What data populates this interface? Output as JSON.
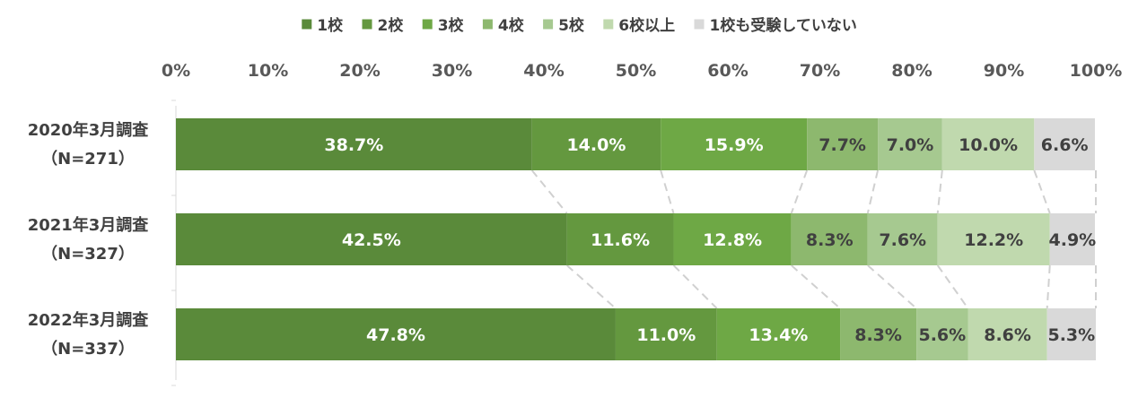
{
  "chart_data": {
    "type": "bar",
    "orientation": "horizontal",
    "stacked": "percent",
    "categories": [
      [
        "2020年3月調査",
        "（N=271）"
      ],
      [
        "2021年3月調査",
        "（N=327）"
      ],
      [
        "2022年3月調査",
        "（N=337）"
      ]
    ],
    "series": [
      {
        "name": "1校",
        "values": [
          38.7,
          42.5,
          47.8
        ],
        "color": "#5a8a3a",
        "label_color": "#ffffff"
      },
      {
        "name": "2校",
        "values": [
          14.0,
          11.6,
          11.0
        ],
        "color": "#64983f",
        "label_color": "#ffffff"
      },
      {
        "name": "3校",
        "values": [
          15.9,
          12.8,
          13.4
        ],
        "color": "#6ea845",
        "label_color": "#ffffff"
      },
      {
        "name": "4校",
        "values": [
          7.7,
          8.3,
          8.3
        ],
        "color": "#8db86e",
        "label_color": "#404040"
      },
      {
        "name": "5校",
        "values": [
          7.0,
          7.6,
          5.6
        ],
        "color": "#a6c990",
        "label_color": "#404040"
      },
      {
        "name": "6校以上",
        "values": [
          10.0,
          12.2,
          8.6
        ],
        "color": "#c0d9ae",
        "label_color": "#404040"
      },
      {
        "name": "1校も受験していない",
        "values": [
          6.6,
          4.9,
          5.3
        ],
        "color": "#d9d9d9",
        "label_color": "#404040"
      }
    ],
    "data_labels": [
      [
        "38.7%",
        "14.0%",
        "15.9%",
        "7.7%",
        "7.0%",
        "10.0%",
        "6.6%"
      ],
      [
        "42.5%",
        "11.6%",
        "12.8%",
        "8.3%",
        "7.6%",
        "12.2%",
        "4.9%"
      ],
      [
        "47.8%",
        "11.0%",
        "13.4%",
        "8.3%",
        "5.6%",
        "8.6%",
        "5.3%"
      ]
    ],
    "x_ticks": [
      "0%",
      "10%",
      "20%",
      "30%",
      "40%",
      "50%",
      "60%",
      "70%",
      "80%",
      "90%",
      "100%"
    ],
    "xlim": [
      0,
      100
    ],
    "legend_position": "top",
    "series_lines": true,
    "grid": false
  }
}
